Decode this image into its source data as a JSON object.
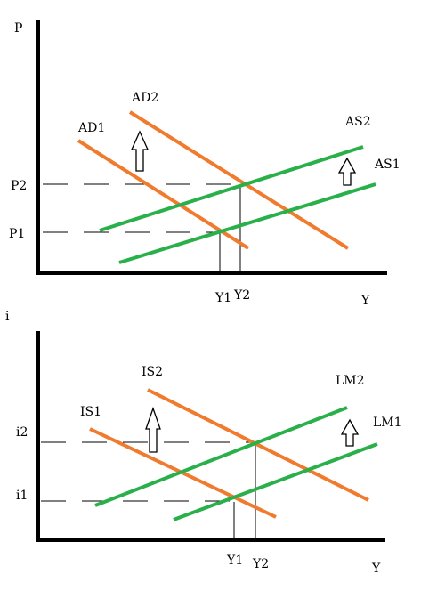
{
  "colors": {
    "axis": "#000000",
    "demand": "#f07b2e",
    "supply": "#2ab04a",
    "guide": "#000000",
    "arrow": "#000000"
  },
  "top_panel": {
    "y_axis_label": "P",
    "x_axis_label": "Y",
    "price_levels": [
      "P2",
      "P1"
    ],
    "output_levels": [
      "Y1",
      "Y2"
    ],
    "curves": {
      "ad1": "AD1",
      "ad2": "AD2",
      "as1": "AS1",
      "as2": "AS2"
    }
  },
  "bottom_panel": {
    "y_axis_label": "i",
    "x_axis_label": "Y",
    "rate_levels": [
      "i2",
      "i1"
    ],
    "output_levels": [
      "Y1",
      "Y2"
    ],
    "curves": {
      "is1": "IS1",
      "is2": "IS2",
      "lm1": "LM1",
      "lm2": "LM2"
    }
  }
}
